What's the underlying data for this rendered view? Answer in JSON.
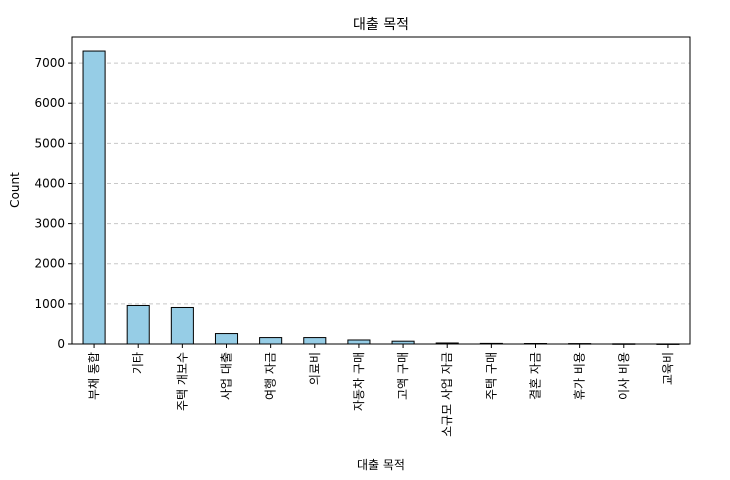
{
  "chart_data": {
    "type": "bar",
    "title": "대출 목적",
    "xlabel": "대출 목적",
    "ylabel": "Count",
    "categories": [
      "부채 통합",
      "기타",
      "주택 개보수",
      "사업 대출",
      "여행 자금",
      "의료비",
      "자동차 구매",
      "고액 구매",
      "소규모 사업 자금",
      "주택 구매",
      "결혼 자금",
      "휴가 비용",
      "이사 비용",
      "교육비"
    ],
    "values": [
      7300,
      960,
      910,
      260,
      160,
      160,
      100,
      70,
      25,
      15,
      12,
      10,
      5,
      2
    ],
    "ylim": [
      0,
      7650
    ],
    "yticks": [
      0,
      1000,
      2000,
      3000,
      4000,
      5000,
      6000,
      7000
    ],
    "grid": "y",
    "bar_color": "#96cde6",
    "edge_color": "#000000"
  }
}
